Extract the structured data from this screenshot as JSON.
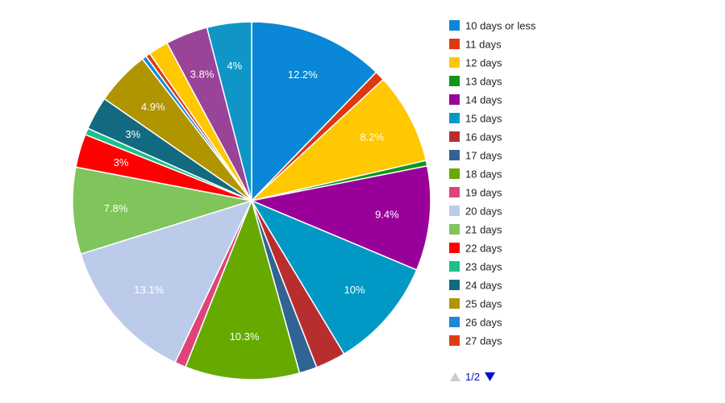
{
  "chart_data": {
    "type": "pie",
    "title": "",
    "colors": {
      "10 days or less": "#3366cc"
    },
    "slices": [
      {
        "label": "10 days or less",
        "value": 12.2,
        "display": "12.2%",
        "color": "#0a87d6"
      },
      {
        "label": "11 days",
        "value": 0.9,
        "display": "",
        "color": "#dc3912"
      },
      {
        "label": "12 days",
        "value": 8.2,
        "display": "8.2%",
        "color": "#ffc800"
      },
      {
        "label": "13 days",
        "value": 0.5,
        "display": "",
        "color": "#109618"
      },
      {
        "label": "14 days",
        "value": 9.4,
        "display": "9.4%",
        "color": "#990099"
      },
      {
        "label": "15 days",
        "value": 10.0,
        "display": "10%",
        "color": "#0099c6"
      },
      {
        "label": "16 days",
        "value": 2.7,
        "display": "",
        "color": "#b82e2e"
      },
      {
        "label": "17 days",
        "value": 1.6,
        "display": "",
        "color": "#316395"
      },
      {
        "label": "18 days",
        "value": 10.3,
        "display": "10.3%",
        "color": "#66aa00"
      },
      {
        "label": "19 days",
        "value": 1.0,
        "display": "",
        "color": "#dd4477"
      },
      {
        "label": "20 days",
        "value": 13.1,
        "display": "13.1%",
        "color": "#bccbea"
      },
      {
        "label": "21 days",
        "value": 7.8,
        "display": "7.8%",
        "color": "#80c45c"
      },
      {
        "label": "22 days",
        "value": 3.0,
        "display": "3%",
        "color": "#ff0000"
      },
      {
        "label": "23 days",
        "value": 0.6,
        "display": "",
        "color": "#1cc08a"
      },
      {
        "label": "24 days",
        "value": 3.0,
        "display": "3%",
        "color": "#126a80"
      },
      {
        "label": "25 days",
        "value": 4.9,
        "display": "4.9%",
        "color": "#b09400"
      },
      {
        "label": "26 days",
        "value": 0.4,
        "display": "",
        "color": "#1a8ad8"
      },
      {
        "label": "27 days",
        "value": 0.4,
        "display": "",
        "color": "#dd3d10"
      },
      {
        "label": "",
        "value": 1.8,
        "display": "",
        "color": "#ffc800"
      },
      {
        "label": "",
        "value": 3.8,
        "display": "3.8%",
        "color": "#994499"
      },
      {
        "label": "",
        "value": 4.0,
        "display": "4%",
        "color": "#1096c6"
      }
    ],
    "legend": {
      "position": "right",
      "entries": [
        {
          "label": "10 days or less",
          "color": "#0a87d6"
        },
        {
          "label": "11 days",
          "color": "#dc3912"
        },
        {
          "label": "12 days",
          "color": "#ffc800"
        },
        {
          "label": "13 days",
          "color": "#109618"
        },
        {
          "label": "14 days",
          "color": "#990099"
        },
        {
          "label": "15 days",
          "color": "#0099c6"
        },
        {
          "label": "16 days",
          "color": "#b82e2e"
        },
        {
          "label": "17 days",
          "color": "#316395"
        },
        {
          "label": "18 days",
          "color": "#66aa00"
        },
        {
          "label": "19 days",
          "color": "#dd4477"
        },
        {
          "label": "20 days",
          "color": "#bccbea"
        },
        {
          "label": "21 days",
          "color": "#80c45c"
        },
        {
          "label": "22 days",
          "color": "#ff0000"
        },
        {
          "label": "23 days",
          "color": "#1cc08a"
        },
        {
          "label": "24 days",
          "color": "#126a80"
        },
        {
          "label": "25 days",
          "color": "#b09400"
        },
        {
          "label": "26 days",
          "color": "#1a8ad8"
        },
        {
          "label": "27 days",
          "color": "#dd3d10"
        }
      ]
    },
    "pager": {
      "text": "1/2",
      "prev_color": "#cccccc",
      "next_color": "#0011cc"
    }
  }
}
